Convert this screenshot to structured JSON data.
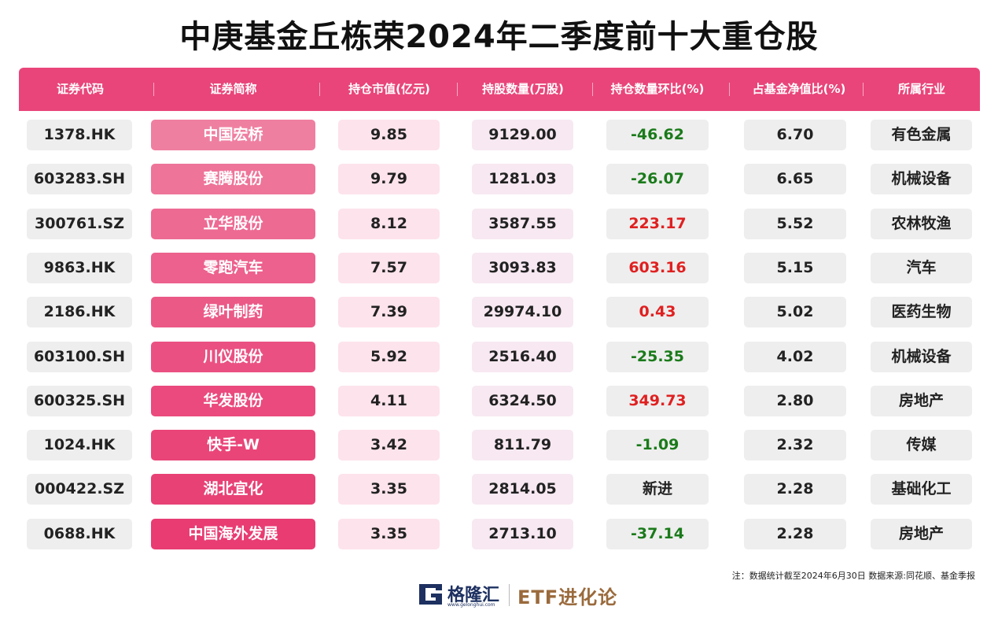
{
  "title": "中庚基金丘栋荣2024年二季度前十大重仓股",
  "colors": {
    "header_bg": "#e9457a",
    "up": "#e02020",
    "down": "#1a7a1a",
    "neutral": "#222222"
  },
  "table": {
    "columns": [
      "证券代码",
      "证券简称",
      "持仓市值(亿元)",
      "持股数量(万股)",
      "持仓数量环比(%)",
      "占基金净值比(%)",
      "所属行业"
    ],
    "rows": [
      {
        "code": "1378.HK",
        "name": "中国宏桥",
        "value": "9.85",
        "shares": "9129.00",
        "change": "-46.62",
        "dir": "down",
        "pct": "6.70",
        "industry": "有色金属"
      },
      {
        "code": "603283.SH",
        "name": "赛腾股份",
        "value": "9.79",
        "shares": "1281.03",
        "change": "-26.07",
        "dir": "down",
        "pct": "6.65",
        "industry": "机械设备"
      },
      {
        "code": "300761.SZ",
        "name": "立华股份",
        "value": "8.12",
        "shares": "3587.55",
        "change": "223.17",
        "dir": "up",
        "pct": "5.52",
        "industry": "农林牧渔"
      },
      {
        "code": "9863.HK",
        "name": "零跑汽车",
        "value": "7.57",
        "shares": "3093.83",
        "change": "603.16",
        "dir": "up",
        "pct": "5.15",
        "industry": "汽车"
      },
      {
        "code": "2186.HK",
        "name": "绿叶制药",
        "value": "7.39",
        "shares": "29974.10",
        "change": "0.43",
        "dir": "up",
        "pct": "5.02",
        "industry": "医药生物"
      },
      {
        "code": "603100.SH",
        "name": "川仪股份",
        "value": "5.92",
        "shares": "2516.40",
        "change": "-25.35",
        "dir": "down",
        "pct": "4.02",
        "industry": "机械设备"
      },
      {
        "code": "600325.SH",
        "name": "华发股份",
        "value": "4.11",
        "shares": "6324.50",
        "change": "349.73",
        "dir": "up",
        "pct": "2.80",
        "industry": "房地产"
      },
      {
        "code": "1024.HK",
        "name": "快手-W",
        "value": "3.42",
        "shares": "811.79",
        "change": "-1.09",
        "dir": "down",
        "pct": "2.32",
        "industry": "传媒"
      },
      {
        "code": "000422.SZ",
        "name": "湖北宜化",
        "value": "3.35",
        "shares": "2814.05",
        "change": "新进",
        "dir": "neutral",
        "pct": "2.28",
        "industry": "基础化工"
      },
      {
        "code": "0688.HK",
        "name": "中国海外发展",
        "value": "3.35",
        "shares": "2713.10",
        "change": "-37.14",
        "dir": "down",
        "pct": "2.28",
        "industry": "房地产"
      }
    ]
  },
  "note": "注：数据统计截至2024年6月30日  数据来源:同花顺、基金季报",
  "footer": {
    "logo_text": "格隆汇",
    "logo_url": "www.gelonghui.com",
    "brand": "ETF进化论",
    "logo_icon": "gelonghui-logo-icon"
  }
}
